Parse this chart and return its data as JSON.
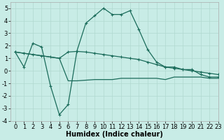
{
  "xlabel": "Humidex (Indice chaleur)",
  "xlim": [
    -0.5,
    23
  ],
  "ylim": [
    -4,
    5.5
  ],
  "background_color": "#c8ece6",
  "grid_color": "#b0d8d0",
  "line_color": "#1a6b5a",
  "line1_x": [
    0,
    1,
    2,
    3,
    4,
    5,
    6,
    7,
    8,
    9,
    10,
    11,
    12,
    13,
    14,
    15,
    16,
    17,
    18,
    19,
    20,
    21,
    22,
    23
  ],
  "line1_y": [
    1.5,
    0.3,
    2.2,
    1.9,
    -1.2,
    -3.5,
    -2.7,
    1.6,
    3.8,
    4.4,
    5.0,
    4.5,
    4.5,
    4.8,
    3.3,
    1.7,
    0.7,
    0.3,
    0.3,
    0.1,
    0.1,
    -0.3,
    -0.5,
    -0.5
  ],
  "line2_x": [
    0,
    1,
    2,
    3,
    4,
    5,
    6,
    7,
    8,
    9,
    10,
    11,
    12,
    13,
    14,
    15,
    16,
    17,
    18,
    19,
    20,
    21,
    22,
    23
  ],
  "line2_y": [
    1.5,
    1.4,
    1.3,
    1.2,
    1.1,
    1.0,
    1.5,
    1.55,
    1.5,
    1.4,
    1.3,
    1.2,
    1.1,
    1.0,
    0.9,
    0.7,
    0.5,
    0.3,
    0.2,
    0.1,
    0.0,
    -0.1,
    -0.2,
    -0.3
  ],
  "line3_x": [
    0,
    1,
    3,
    4,
    5,
    6,
    7,
    9,
    10,
    11,
    12,
    13,
    14,
    15,
    16,
    17,
    18,
    19,
    20,
    21,
    22,
    23
  ],
  "line3_y": [
    1.5,
    1.4,
    1.2,
    1.1,
    1.0,
    -0.8,
    -0.8,
    -0.7,
    -0.7,
    -0.7,
    -0.6,
    -0.6,
    -0.6,
    -0.6,
    -0.6,
    -0.7,
    -0.5,
    -0.5,
    -0.5,
    -0.5,
    -0.6,
    -0.6
  ],
  "ytick_values": [
    -4,
    -3,
    -2,
    -1,
    0,
    1,
    2,
    3,
    4,
    5
  ],
  "fontsize_tick": 6,
  "fontsize_label": 7
}
